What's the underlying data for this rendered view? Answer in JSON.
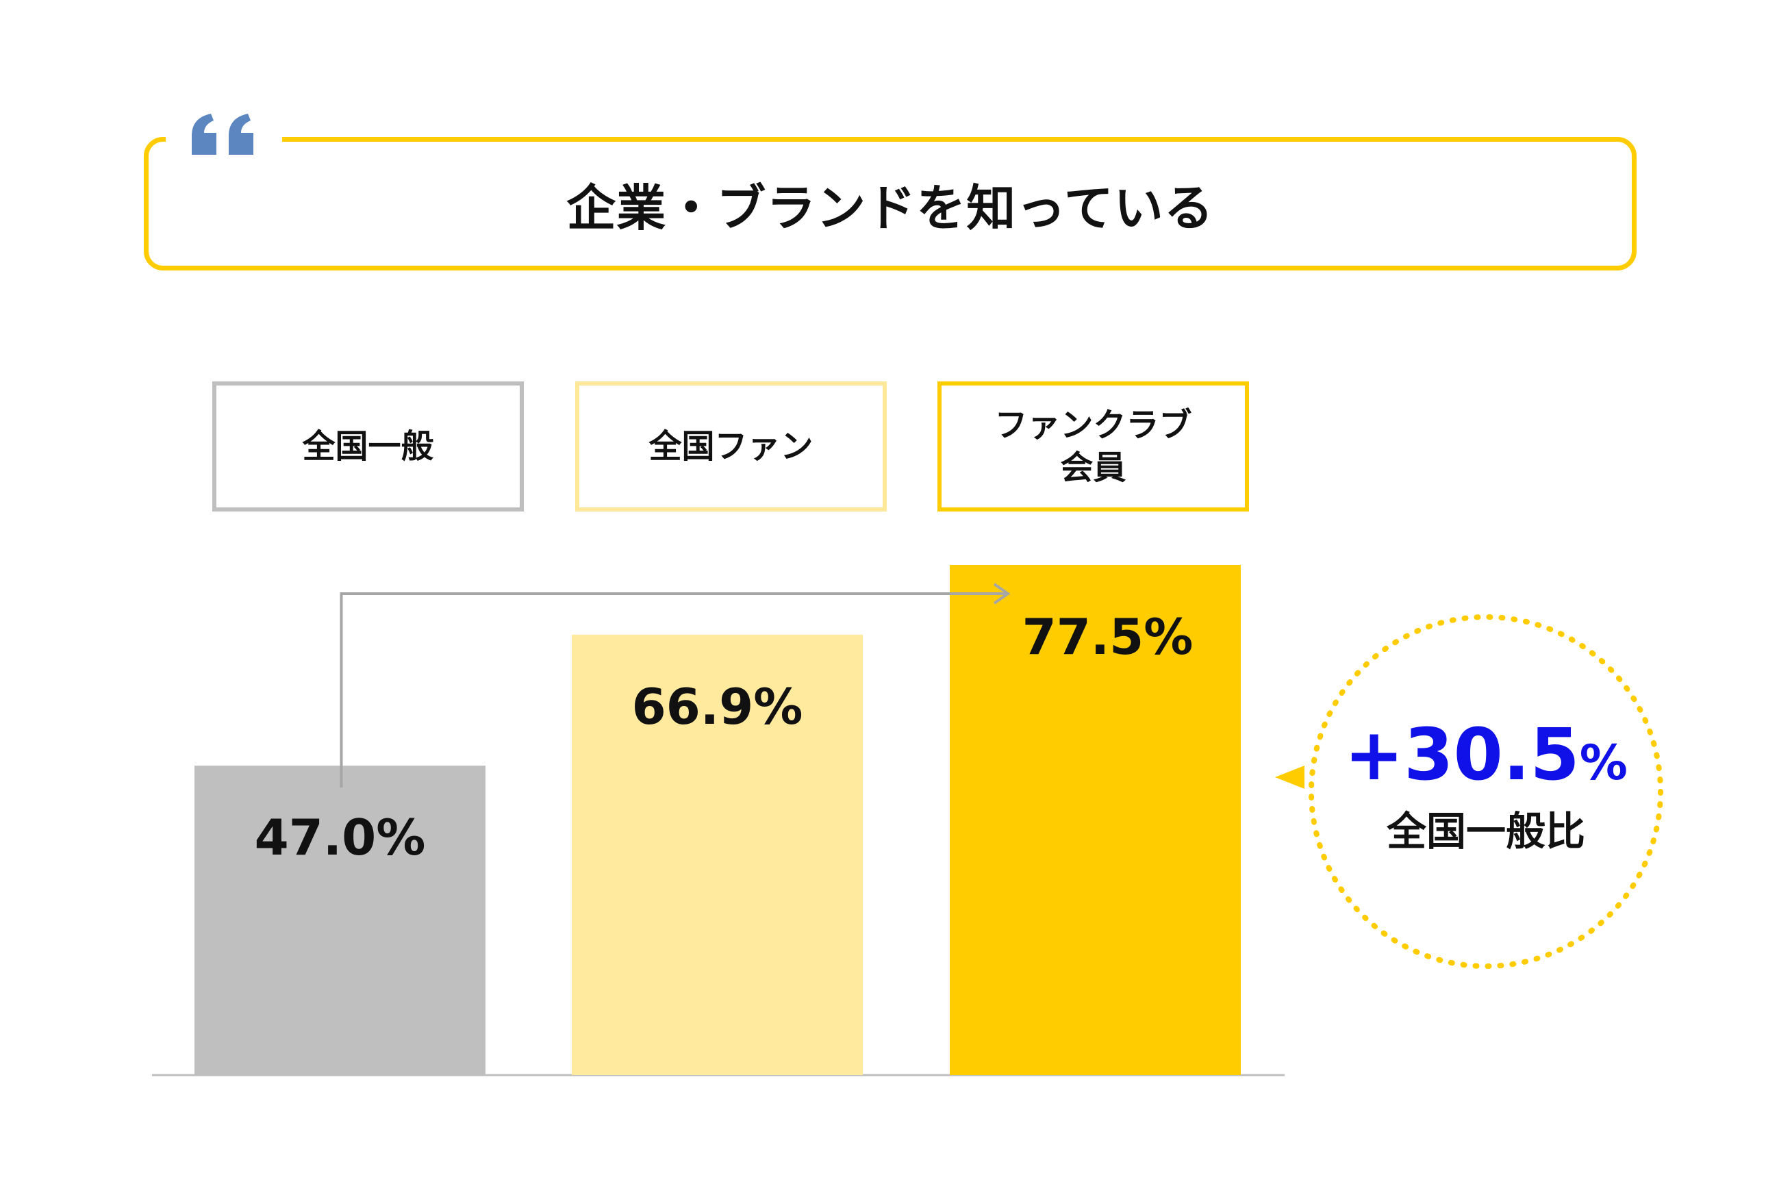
{
  "title": "企業・ブランドを知っている",
  "icons": {
    "quote": "quote-mark-icon",
    "arrow": "arrow-right-icon",
    "pointer": "triangle-left-icon"
  },
  "colors": {
    "frame": "#FFCC00",
    "quote": "#5B86C0",
    "accent_text": "#1010E8",
    "connector": "#A6A6A6",
    "baseline": "#BFBFBF"
  },
  "legend": [
    {
      "label": "全国一般",
      "border": "#BFBFBF"
    },
    {
      "label": "全国ファン",
      "border": "#FFE999"
    },
    {
      "label": "ファンクラブ\n会員",
      "border": "#FFCC00"
    }
  ],
  "chart_data": {
    "type": "bar",
    "categories": [
      "全国一般",
      "全国ファン",
      "ファンクラブ会員"
    ],
    "values": [
      47.0,
      66.9,
      77.5
    ],
    "value_labels": [
      "47.0%",
      "66.9%",
      "77.5%"
    ],
    "colors": [
      "#BFBFBF",
      "#FFEA9E",
      "#FFCC00"
    ],
    "ylim": [
      0,
      77.5
    ],
    "unit": "%",
    "grid": false,
    "legend": "top"
  },
  "comparison": {
    "value": "+30.5",
    "unit": "%",
    "label": "全国一般比"
  }
}
